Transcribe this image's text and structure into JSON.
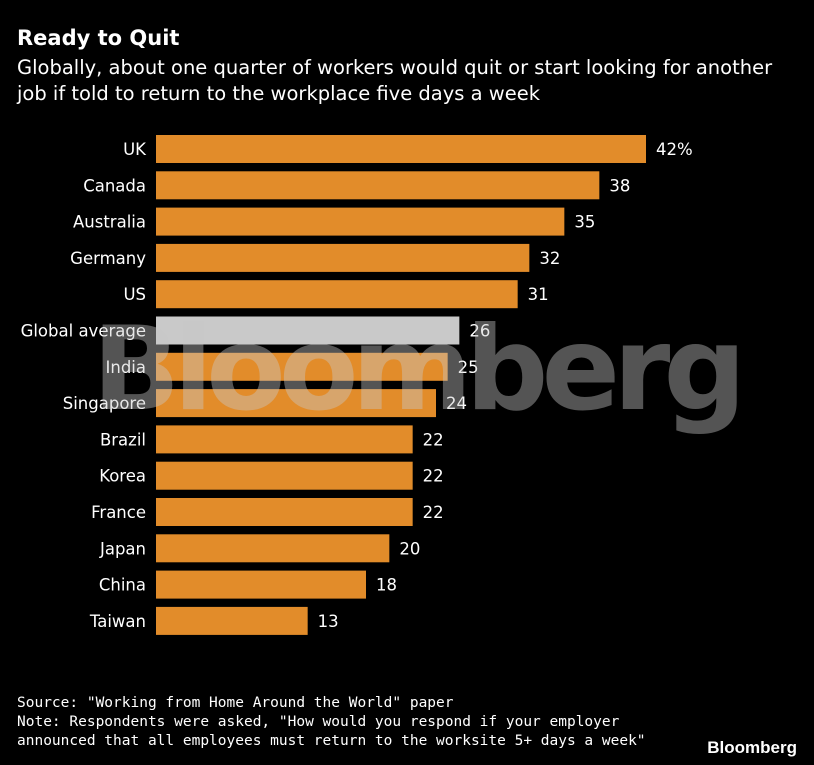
{
  "header": {
    "title": "Ready to Quit",
    "subtitle": "Globally, about one quarter of workers would quit or start looking for another job if told to return to the workplace five days a week"
  },
  "chart_data": {
    "type": "bar",
    "orientation": "horizontal",
    "categories": [
      "UK",
      "Canada",
      "Australia",
      "Germany",
      "US",
      "Global average",
      "India",
      "Singapore",
      "Brazil",
      "Korea",
      "France",
      "Japan",
      "China",
      "Taiwan"
    ],
    "values": [
      42,
      38,
      35,
      32,
      31,
      26,
      25,
      24,
      22,
      22,
      22,
      20,
      18,
      13
    ],
    "value_labels": [
      "42%",
      "38",
      "35",
      "32",
      "31",
      "26",
      "25",
      "24",
      "22",
      "22",
      "22",
      "20",
      "18",
      "13"
    ],
    "unit": "%",
    "highlight_category": "Global average",
    "colors": {
      "bar": "#E28C2A",
      "highlight": "#C9C9C9"
    },
    "xlim": [
      0,
      42
    ],
    "grid": false,
    "legend": "none"
  },
  "footer": {
    "source": "Source: \"Working from Home Around the World\" paper",
    "note_line1": "Note: Respondents were asked, \"How would you respond if your employer",
    "note_line2": "announced that all employees must return to the worksite 5+ days a week\""
  },
  "watermark": "Bloomberg",
  "brand": "Bloomberg"
}
